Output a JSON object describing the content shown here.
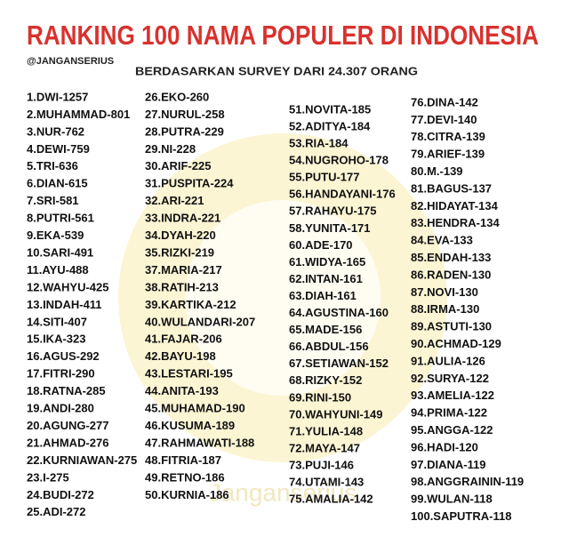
{
  "header": {
    "title": "RANKING 100 NAMA POPULER DI INDONESIA",
    "handle": "@JANGANSERIUS",
    "subtitle": "BERDASARKAN SURVEY DARI 24.307 ORANG"
  },
  "watermark": "Janganserius",
  "columns": [
    [
      "1.DWI-1257",
      "2.MUHAMMAD-801",
      "3.NUR-762",
      "4.DEWI-759",
      "5.TRI-636",
      "6.DIAN-615",
      "7.SRI-581",
      "8.PUTRI-561",
      "9.EKA-539",
      "10.SARI-491",
      "11.AYU-488",
      "12.WAHYU-425",
      "13.INDAH-411",
      "14.SITI-407",
      "15.IKA-323",
      "16.AGUS-292",
      "17.FITRI-290",
      "18.RATNA-285",
      "19.ANDI-280",
      "20.AGUNG-277",
      "21.AHMAD-276",
      "22.KURNIAWAN-275",
      "23.I-275",
      "24.BUDI-272",
      "25.ADI-272"
    ],
    [
      "26.EKO-260",
      "27.NURUL-258",
      "28.PUTRA-229",
      "29.NI-228",
      "30.ARIF-225",
      "31.PUSPITA-224",
      "32.ARI-221",
      "33.INDRA-221",
      "34.DYAH-220",
      "35.RIZKI-219",
      "37.MARIA-217",
      "38.RATIH-213",
      "39.KARTIKA-212",
      "40.WULANDARI-207",
      "41.FAJAR-206",
      "42.BAYU-198",
      "43.LESTARI-195",
      "44.ANITA-193",
      "45.MUHAMAD-190",
      "46.KUSUMA-189",
      "47.RAHMAWATI-188",
      "48.FITRIA-187",
      "49.RETNO-186",
      "50.KURNIA-186"
    ],
    [
      "51.NOVITA-185",
      "52.ADITYA-184",
      "53.RIA-184",
      "54.NUGROHO-178",
      "55.PUTU-177",
      "56.HANDAYANI-176",
      "57.RAHAYU-175",
      "58.YUNITA-171",
      "60.ADE-170",
      "61.WIDYA-165",
      "62.INTAN-161",
      "63.DIAH-161",
      "64.AGUSTINA-160",
      "65.MADE-156",
      "66.ABDUL-156",
      "67.SETIAWAN-152",
      "68.RIZKY-152",
      "69.RINI-150",
      "70.WAHYUNI-149",
      "71.YULIA-148",
      "72.MAYA-147",
      "73.PUJI-146",
      "74.UTAMI-143",
      "75.AMALIA-142"
    ],
    [
      "76.DINA-142",
      "77.DEVI-140",
      "78.CITRA-139",
      "79.ARIEF-139",
      "80.M.-139",
      "81.BAGUS-137",
      "82.HIDAYAT-134",
      "83.HENDRA-134",
      "84.EVA-133",
      "85.ENDAH-133",
      "86.RADEN-130",
      "87.NOVI-130",
      "88.IRMA-130",
      "89.ASTUTI-130",
      "90.ACHMAD-129",
      "91.AULIA-126",
      "92.SURYA-122",
      "93.AMELIA-122",
      "94.PRIMA-122",
      "95.ANGGA-122",
      "96.HADI-120",
      "97.DIANA-119",
      "98.ANGGRAININ-119",
      "99.WULAN-118",
      "100.SAPUTRA-118"
    ]
  ]
}
